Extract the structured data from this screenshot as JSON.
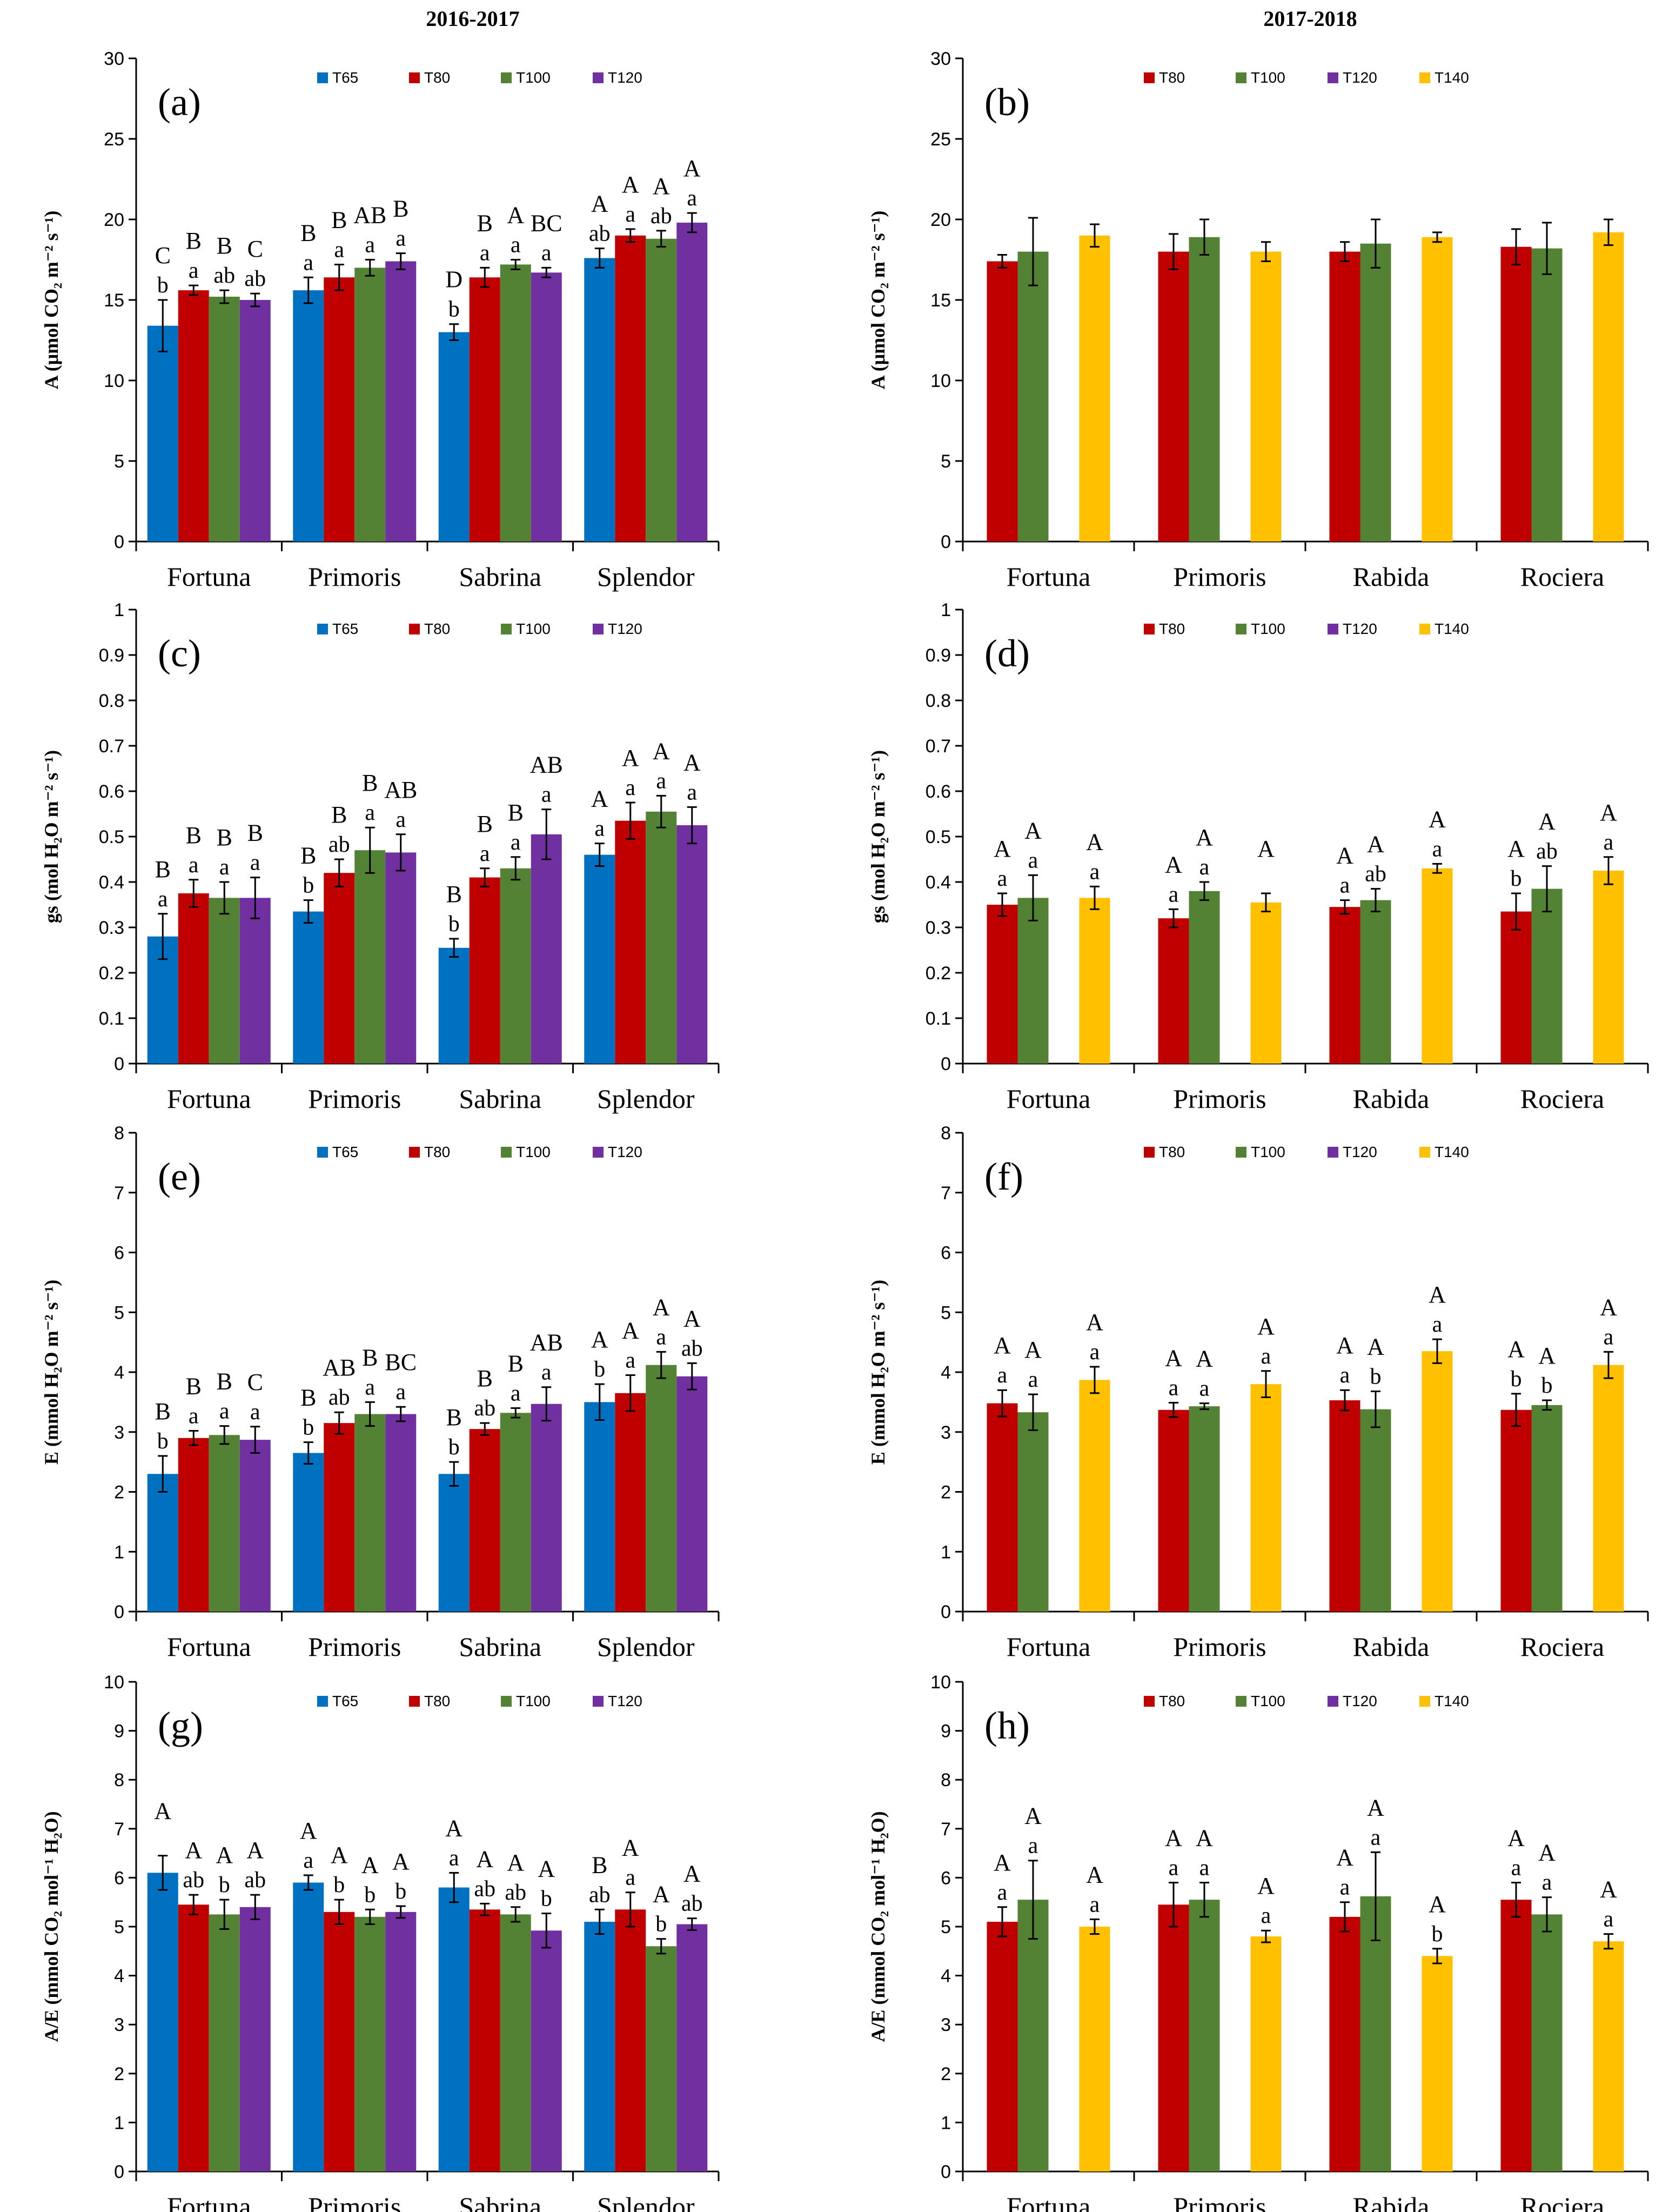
{
  "column_titles": [
    "2016-2017",
    "2017-2018"
  ],
  "colors": {
    "T65": "#0070C0",
    "T80": "#C00000",
    "T100": "#548235",
    "T120": "#7030A0",
    "T140": "#FFC000"
  },
  "chart_data": [
    {
      "id": "a",
      "panel_label": "(a)",
      "type": "bar",
      "ylabel": "A (μmol CO₂ m⁻² s⁻¹)",
      "ylim": [
        0,
        30
      ],
      "yticks": [
        0,
        5,
        10,
        15,
        20,
        25,
        30
      ],
      "tick_labels": [
        "0",
        "5",
        "10",
        "15",
        "20",
        "25",
        "30"
      ],
      "categories": [
        "Fortuna",
        "Primoris",
        "Sabrina",
        "Splendor"
      ],
      "legend": [
        "T65",
        "T80",
        "T100",
        "T120"
      ],
      "series": [
        {
          "name": "T65",
          "values": [
            13.4,
            15.6,
            13.0,
            17.6
          ],
          "errors": [
            1.6,
            0.8,
            0.5,
            0.6
          ]
        },
        {
          "name": "T80",
          "values": [
            15.6,
            16.4,
            16.4,
            19.0
          ],
          "errors": [
            0.3,
            0.8,
            0.6,
            0.4
          ]
        },
        {
          "name": "T100",
          "values": [
            15.2,
            17.0,
            17.2,
            18.8
          ],
          "errors": [
            0.4,
            0.5,
            0.3,
            0.5
          ]
        },
        {
          "name": "T120",
          "values": [
            15.0,
            17.4,
            16.7,
            19.8
          ],
          "errors": [
            0.4,
            0.5,
            0.3,
            0.6
          ]
        }
      ],
      "annotations": [
        [
          "C|b",
          "B|a",
          "B|ab",
          "C|ab"
        ],
        [
          "B|a",
          "B|a",
          "AB|a",
          "B|a"
        ],
        [
          "D|b",
          "B|a",
          "A|a",
          "BC|a"
        ],
        [
          "A|ab",
          "A|a",
          "A|ab",
          "A|a"
        ]
      ]
    },
    {
      "id": "b",
      "panel_label": "(b)",
      "type": "bar",
      "ylabel": "A (μmol CO₂ m⁻² s⁻¹)",
      "ylim": [
        0,
        30
      ],
      "yticks": [
        0,
        5,
        10,
        15,
        20,
        25,
        30
      ],
      "tick_labels": [
        "0",
        "5",
        "10",
        "15",
        "20",
        "25",
        "30"
      ],
      "categories": [
        "Fortuna",
        "Primoris",
        "Rabida",
        "Rociera"
      ],
      "legend": [
        "T80",
        "T100",
        "T120",
        "T140"
      ],
      "series": [
        {
          "name": "T80",
          "values": [
            17.4,
            18.0,
            18.0,
            18.3
          ],
          "errors": [
            0.4,
            1.1,
            0.6,
            1.1
          ]
        },
        {
          "name": "T100",
          "values": [
            18.0,
            18.9,
            18.5,
            18.2
          ],
          "errors": [
            2.1,
            1.1,
            1.5,
            1.6
          ]
        },
        {
          "name": "T120",
          "values": [
            null,
            null,
            null,
            null
          ],
          "errors": [
            0,
            0,
            0,
            0
          ]
        },
        {
          "name": "T140",
          "values": [
            19.0,
            18.0,
            18.9,
            19.2
          ],
          "errors": [
            0.7,
            0.6,
            0.3,
            0.8
          ]
        }
      ],
      "annotations": []
    },
    {
      "id": "c",
      "panel_label": "(c)",
      "type": "bar",
      "ylabel": "gs (mol H₂O m⁻² s⁻¹)",
      "ylim": [
        0,
        1
      ],
      "yticks": [
        0,
        0.1,
        0.2,
        0.3,
        0.4,
        0.5,
        0.6,
        0.7,
        0.8,
        0.9,
        1
      ],
      "tick_labels": [
        "0",
        "0.1",
        "0.2",
        "0.3",
        "0.4",
        "0.5",
        "0.6",
        "0.7",
        "0.8",
        "0.9",
        "1"
      ],
      "categories": [
        "Fortuna",
        "Primoris",
        "Sabrina",
        "Splendor"
      ],
      "legend": [
        "T65",
        "T80",
        "T100",
        "T120"
      ],
      "series": [
        {
          "name": "T65",
          "values": [
            0.28,
            0.335,
            0.255,
            0.46
          ],
          "errors": [
            0.05,
            0.025,
            0.02,
            0.025
          ]
        },
        {
          "name": "T80",
          "values": [
            0.375,
            0.42,
            0.41,
            0.535
          ],
          "errors": [
            0.03,
            0.03,
            0.02,
            0.04
          ]
        },
        {
          "name": "T100",
          "values": [
            0.365,
            0.47,
            0.43,
            0.555
          ],
          "errors": [
            0.035,
            0.05,
            0.025,
            0.035
          ]
        },
        {
          "name": "T120",
          "values": [
            0.365,
            0.465,
            0.505,
            0.525
          ],
          "errors": [
            0.045,
            0.04,
            0.055,
            0.04
          ]
        }
      ],
      "annotations": [
        [
          "B|a",
          "B|a",
          "B|a",
          "B|a"
        ],
        [
          "B|b",
          "B|ab",
          "B|a",
          "AB|a"
        ],
        [
          "B|b",
          "B|a",
          "B|a",
          "AB|a"
        ],
        [
          "A|a",
          "A|a",
          "A|a",
          "A|a"
        ]
      ]
    },
    {
      "id": "d",
      "panel_label": "(d)",
      "type": "bar",
      "ylabel": "gs (mol H₂O m⁻² s⁻¹)",
      "ylim": [
        0,
        1
      ],
      "yticks": [
        0,
        0.1,
        0.2,
        0.3,
        0.4,
        0.5,
        0.6,
        0.7,
        0.8,
        0.9,
        1
      ],
      "tick_labels": [
        "0",
        "0.1",
        "0.2",
        "0.3",
        "0.4",
        "0.5",
        "0.6",
        "0.7",
        "0.8",
        "0.9",
        "1"
      ],
      "categories": [
        "Fortuna",
        "Primoris",
        "Rabida",
        "Rociera"
      ],
      "legend": [
        "T80",
        "T100",
        "T120",
        "T140"
      ],
      "series": [
        {
          "name": "T80",
          "values": [
            0.35,
            0.32,
            0.345,
            0.335
          ],
          "errors": [
            0.025,
            0.02,
            0.015,
            0.04
          ]
        },
        {
          "name": "T100",
          "values": [
            0.365,
            0.38,
            0.36,
            0.385
          ],
          "errors": [
            0.05,
            0.02,
            0.025,
            0.05
          ]
        },
        {
          "name": "T120",
          "values": [
            null,
            null,
            null,
            null
          ],
          "errors": [
            0,
            0,
            0,
            0
          ]
        },
        {
          "name": "T140",
          "values": [
            0.365,
            0.355,
            0.43,
            0.425
          ],
          "errors": [
            0.025,
            0.02,
            0.01,
            0.03
          ]
        }
      ],
      "annotations": [
        [
          "A|a",
          "A|a",
          "",
          "A|a"
        ],
        [
          "A|a",
          "A|a",
          "",
          "A|"
        ],
        [
          "A|a",
          "A|ab",
          "",
          "A|a"
        ],
        [
          "A|b",
          "A|ab",
          "",
          "A|a"
        ]
      ]
    },
    {
      "id": "e",
      "panel_label": "(e)",
      "type": "bar",
      "ylabel": "E (mmol H₂O m⁻² s⁻¹)",
      "ylim": [
        0,
        8
      ],
      "yticks": [
        0,
        1,
        2,
        3,
        4,
        5,
        6,
        7,
        8
      ],
      "tick_labels": [
        "0",
        "1",
        "2",
        "3",
        "4",
        "5",
        "6",
        "7",
        "8"
      ],
      "categories": [
        "Fortuna",
        "Primoris",
        "Sabrina",
        "Splendor"
      ],
      "legend": [
        "T65",
        "T80",
        "T100",
        "T120"
      ],
      "series": [
        {
          "name": "T65",
          "values": [
            2.3,
            2.65,
            2.3,
            3.5
          ],
          "errors": [
            0.3,
            0.18,
            0.2,
            0.3
          ]
        },
        {
          "name": "T80",
          "values": [
            2.9,
            3.15,
            3.05,
            3.65
          ],
          "errors": [
            0.12,
            0.18,
            0.1,
            0.3
          ]
        },
        {
          "name": "T100",
          "values": [
            2.95,
            3.3,
            3.32,
            4.12
          ],
          "errors": [
            0.15,
            0.2,
            0.08,
            0.22
          ]
        },
        {
          "name": "T120",
          "values": [
            2.87,
            3.3,
            3.47,
            3.93
          ],
          "errors": [
            0.22,
            0.12,
            0.28,
            0.22
          ]
        }
      ],
      "annotations": [
        [
          "B|b",
          "B|a",
          "B|a",
          "C|a"
        ],
        [
          "B|b",
          "AB|ab",
          "B|a",
          "BC|a"
        ],
        [
          "B|b",
          "B|ab",
          "B|a",
          "AB|a"
        ],
        [
          "A|b",
          "A|a",
          "A|a",
          "A|ab"
        ]
      ]
    },
    {
      "id": "f",
      "panel_label": "(f)",
      "type": "bar",
      "ylabel": "E (mmol H₂O m⁻² s⁻¹)",
      "ylim": [
        0,
        8
      ],
      "yticks": [
        0,
        1,
        2,
        3,
        4,
        5,
        6,
        7,
        8
      ],
      "tick_labels": [
        "0",
        "1",
        "2",
        "3",
        "4",
        "5",
        "6",
        "7",
        "8"
      ],
      "categories": [
        "Fortuna",
        "Primoris",
        "Rabida",
        "Rociera"
      ],
      "legend": [
        "T80",
        "T100",
        "T120",
        "T140"
      ],
      "series": [
        {
          "name": "T80",
          "values": [
            3.48,
            3.37,
            3.53,
            3.37
          ],
          "errors": [
            0.22,
            0.12,
            0.17,
            0.27
          ]
        },
        {
          "name": "T100",
          "values": [
            3.33,
            3.43,
            3.38,
            3.45
          ],
          "errors": [
            0.3,
            0.05,
            0.3,
            0.08
          ]
        },
        {
          "name": "T120",
          "values": [
            null,
            null,
            null,
            null
          ],
          "errors": [
            0,
            0,
            0,
            0
          ]
        },
        {
          "name": "T140",
          "values": [
            3.87,
            3.8,
            4.35,
            4.12
          ],
          "errors": [
            0.22,
            0.22,
            0.2,
            0.22
          ]
        }
      ],
      "annotations": [
        [
          "A|a",
          "A|a",
          "",
          "A|a"
        ],
        [
          "A|a",
          "A|a",
          "",
          "A|a"
        ],
        [
          "A|a",
          "A|b",
          "",
          "A|a"
        ],
        [
          "A|b",
          "A|b",
          "",
          "A|a"
        ]
      ]
    },
    {
      "id": "g",
      "panel_label": "(g)",
      "type": "bar",
      "ylabel": "A/E (mmol CO₂ mol⁻¹ H₂O)",
      "ylim": [
        0,
        10
      ],
      "yticks": [
        0,
        1,
        2,
        3,
        4,
        5,
        6,
        7,
        8,
        9,
        10
      ],
      "tick_labels": [
        "0",
        "1",
        "2",
        "3",
        "4",
        "5",
        "6",
        "7",
        "8",
        "9",
        "10"
      ],
      "categories": [
        "Fortuna",
        "Primoris",
        "Sabrina",
        "Splendor"
      ],
      "legend": [
        "T65",
        "T80",
        "T100",
        "T120"
      ],
      "series": [
        {
          "name": "T65",
          "values": [
            6.1,
            5.9,
            5.8,
            5.1
          ],
          "errors": [
            0.35,
            0.15,
            0.3,
            0.25
          ]
        },
        {
          "name": "T80",
          "values": [
            5.45,
            5.3,
            5.35,
            5.35
          ],
          "errors": [
            0.2,
            0.25,
            0.12,
            0.35
          ]
        },
        {
          "name": "T100",
          "values": [
            5.25,
            5.2,
            5.25,
            4.6
          ],
          "errors": [
            0.3,
            0.15,
            0.15,
            0.15
          ]
        },
        {
          "name": "T120",
          "values": [
            5.4,
            5.3,
            4.92,
            5.05
          ],
          "errors": [
            0.25,
            0.12,
            0.35,
            0.12
          ]
        }
      ],
      "annotations": [
        [
          "A|",
          "A|ab",
          "A|b",
          "A|ab"
        ],
        [
          "A|a",
          "A|b",
          "A|b",
          "A|b"
        ],
        [
          "A|a",
          "A|ab",
          "A|ab",
          "A|b"
        ],
        [
          "B|ab",
          "A|a",
          "A|b",
          "A|ab"
        ]
      ]
    },
    {
      "id": "h",
      "panel_label": "(h)",
      "type": "bar",
      "ylabel": "A/E (mmol CO₂ mol⁻¹ H₂O)",
      "ylim": [
        0,
        10
      ],
      "yticks": [
        0,
        1,
        2,
        3,
        4,
        5,
        6,
        7,
        8,
        9,
        10
      ],
      "tick_labels": [
        "0",
        "1",
        "2",
        "3",
        "4",
        "5",
        "6",
        "7",
        "8",
        "9",
        "10"
      ],
      "categories": [
        "Fortuna",
        "Primoris",
        "Rabida",
        "Rociera"
      ],
      "legend": [
        "T80",
        "T100",
        "T120",
        "T140"
      ],
      "series": [
        {
          "name": "T80",
          "values": [
            5.1,
            5.45,
            5.2,
            5.55
          ],
          "errors": [
            0.3,
            0.45,
            0.3,
            0.35
          ]
        },
        {
          "name": "T100",
          "values": [
            5.55,
            5.55,
            5.62,
            5.25
          ],
          "errors": [
            0.8,
            0.35,
            0.9,
            0.35
          ]
        },
        {
          "name": "T120",
          "values": [
            null,
            null,
            null,
            null
          ],
          "errors": [
            0,
            0,
            0,
            0
          ]
        },
        {
          "name": "T140",
          "values": [
            5.0,
            4.8,
            4.4,
            4.7
          ],
          "errors": [
            0.15,
            0.12,
            0.15,
            0.15
          ]
        }
      ],
      "annotations": [
        [
          "A|a",
          "A|a",
          "",
          "A|a"
        ],
        [
          "A|a",
          "A|a",
          "",
          "A|a"
        ],
        [
          "A|a",
          "A|a",
          "",
          "A|b"
        ],
        [
          "A|a",
          "A|a",
          "",
          "A|a"
        ]
      ]
    }
  ]
}
